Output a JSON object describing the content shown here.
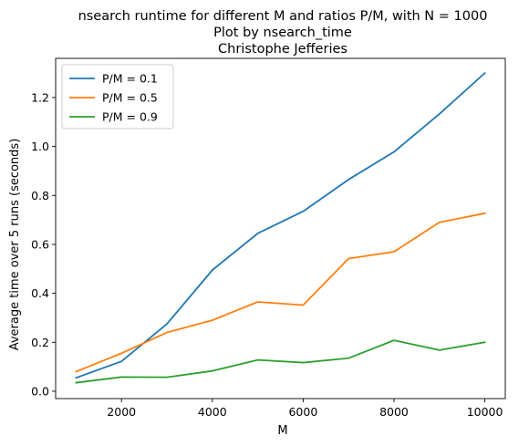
{
  "chart_data": {
    "type": "line",
    "title_lines": [
      "nsearch runtime for different M and ratios P/M, with N = 1000",
      "Plot by nsearch_time",
      "Christophe Jefferies"
    ],
    "xlabel": "M",
    "ylabel": "Average time over 5 runs (seconds)",
    "x": [
      1000,
      2000,
      3000,
      4000,
      5000,
      6000,
      7000,
      8000,
      9000,
      10000
    ],
    "xlim": [
      550,
      10450
    ],
    "ylim": [
      -0.03,
      1.36
    ],
    "xticks": [
      2000,
      4000,
      6000,
      8000,
      10000
    ],
    "xtick_labels": [
      "2000",
      "4000",
      "6000",
      "8000",
      "10000"
    ],
    "yticks": [
      0.0,
      0.2,
      0.4,
      0.6,
      0.8,
      1.0,
      1.2
    ],
    "ytick_labels": [
      "0.0",
      "0.2",
      "0.4",
      "0.6",
      "0.8",
      "1.0",
      "1.2"
    ],
    "grid": false,
    "legend_position": "top-left",
    "series": [
      {
        "name": "P/M = 0.1",
        "color": "#1f77b4",
        "values": [
          0.055,
          0.122,
          0.275,
          0.495,
          0.645,
          0.735,
          0.865,
          0.978,
          1.133,
          1.3
        ]
      },
      {
        "name": "P/M = 0.5",
        "color": "#ff7f0e",
        "values": [
          0.08,
          0.155,
          0.24,
          0.29,
          0.365,
          0.352,
          0.542,
          0.57,
          0.69,
          0.727
        ]
      },
      {
        "name": "P/M = 0.9",
        "color": "#2ca02c",
        "values": [
          0.035,
          0.058,
          0.057,
          0.083,
          0.128,
          0.117,
          0.135,
          0.208,
          0.168,
          0.2
        ]
      }
    ]
  }
}
